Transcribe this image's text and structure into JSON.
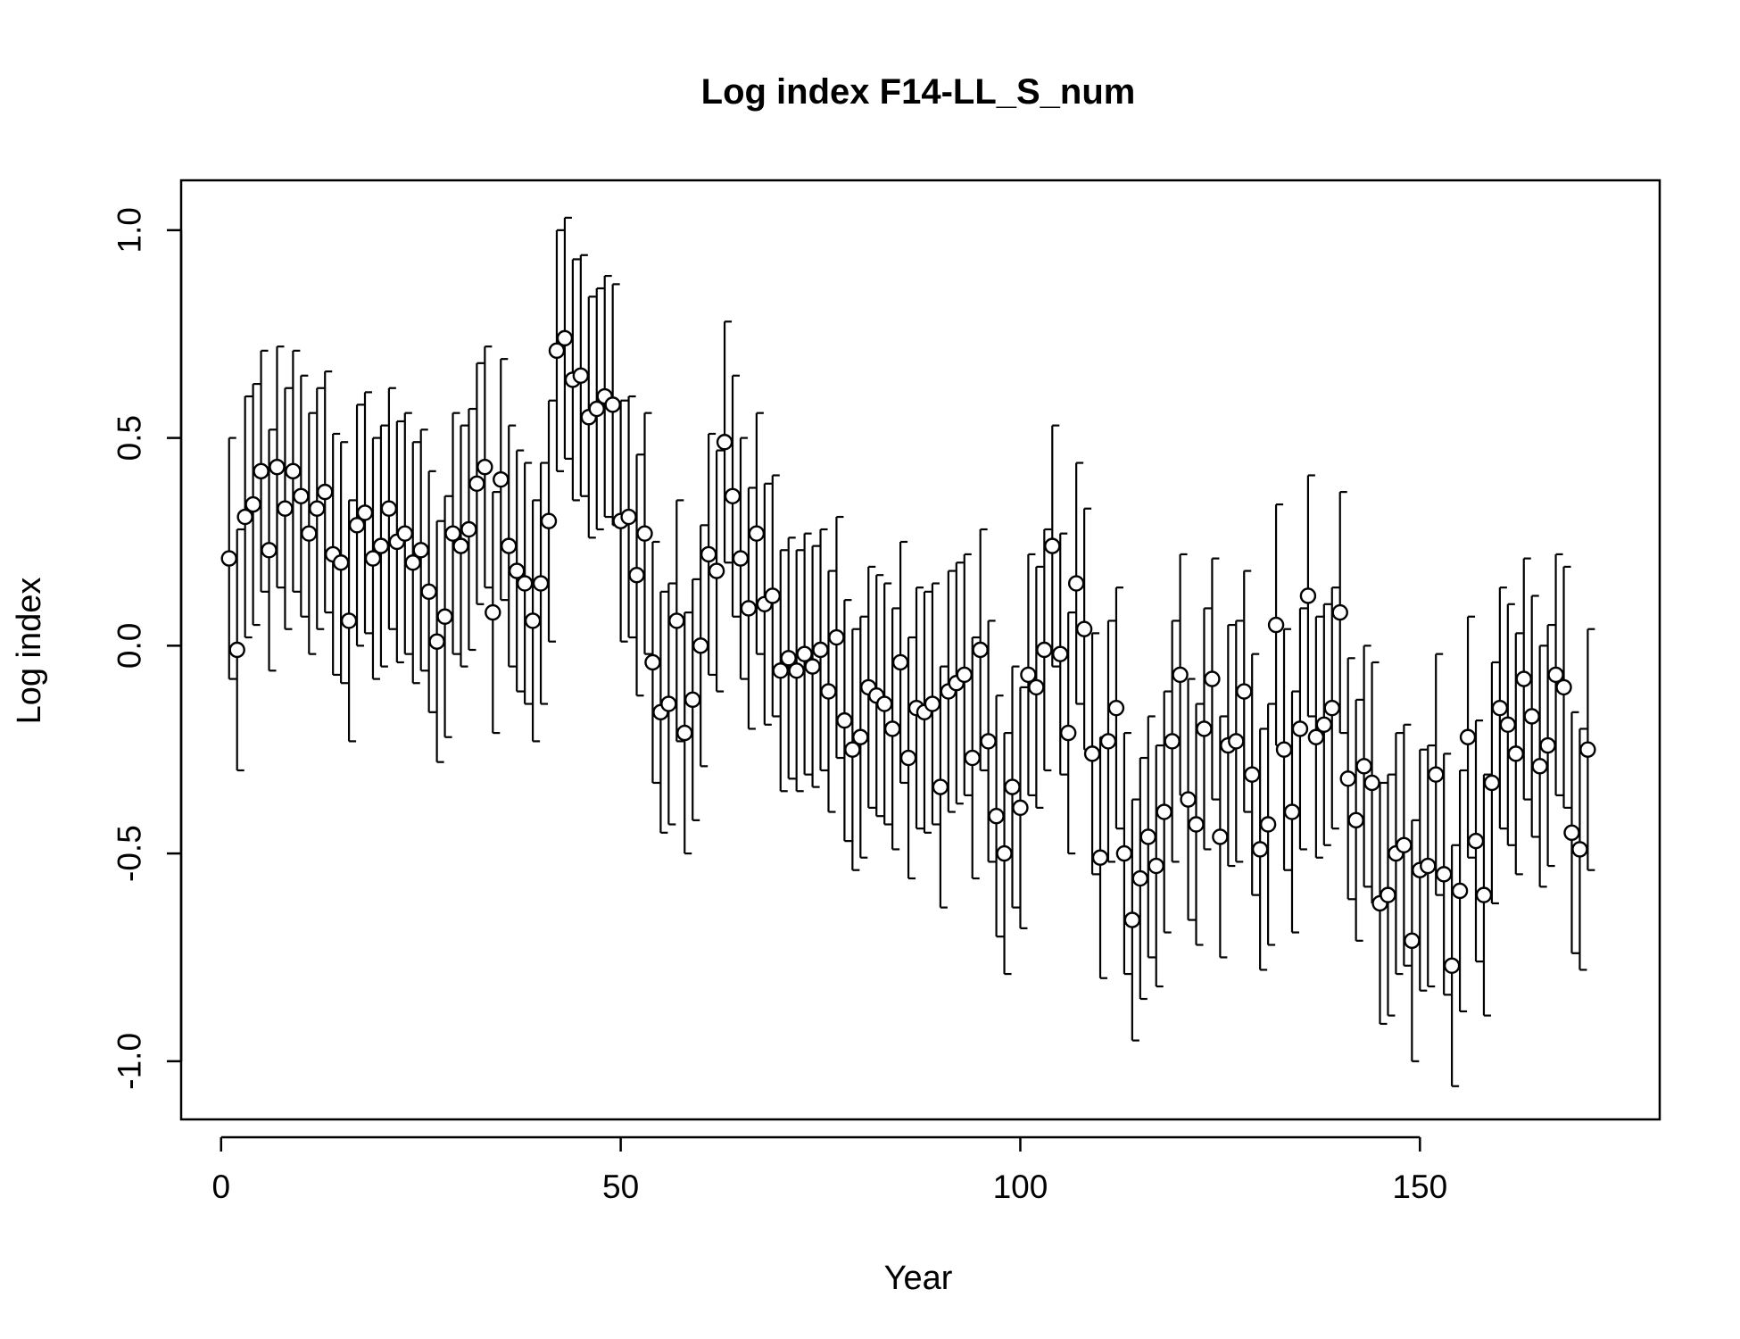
{
  "chart_data": {
    "type": "scatter",
    "title": "Log index F14-LL_S_num",
    "xlabel": "Year",
    "ylabel": "Log index",
    "xlim": [
      -5,
      180
    ],
    "ylim": [
      -1.14,
      1.12
    ],
    "x_ticks": [
      0,
      50,
      100,
      150
    ],
    "y_ticks": [
      -1.0,
      -0.5,
      0.0,
      0.5,
      1.0
    ],
    "x_tick_labels": [
      "0",
      "50",
      "100",
      "150"
    ],
    "y_tick_labels": [
      "-1.0",
      "-0.5",
      "0.0",
      "0.5",
      "1.0"
    ],
    "error_bar_halfwidth": 0.29,
    "grid": false,
    "legend": "none",
    "colors": {
      "point_fill": "#ffffff",
      "point_stroke": "#000000",
      "error_bar": "#000000",
      "frame": "#000000"
    },
    "series": [
      {
        "x": [
          1,
          2,
          3,
          4,
          5,
          6,
          7,
          8,
          9,
          10,
          11,
          12,
          13,
          14,
          15,
          16,
          17,
          18,
          19,
          20,
          21,
          22,
          23,
          24,
          25,
          26,
          27,
          28,
          29,
          30,
          31,
          32,
          33,
          34,
          35,
          36,
          37,
          38,
          39,
          40,
          41,
          42,
          43,
          44,
          45,
          46,
          47,
          48,
          49,
          50,
          51,
          52,
          53,
          54,
          55,
          56,
          57,
          58,
          59,
          60,
          61,
          62,
          63,
          64,
          65,
          66,
          67,
          68,
          69,
          70,
          71,
          72,
          73,
          74,
          75,
          76,
          77,
          78,
          79,
          80,
          81,
          82,
          83,
          84,
          85,
          86,
          87,
          88,
          89,
          90,
          91,
          92,
          93,
          94,
          95,
          96,
          97,
          98,
          99,
          100,
          101,
          102,
          103,
          104,
          105,
          106,
          107,
          108,
          109,
          110,
          111,
          112,
          113,
          114,
          115,
          116,
          117,
          118,
          119,
          120,
          121,
          122,
          123,
          124,
          125,
          126,
          127,
          128,
          129,
          130,
          131,
          132,
          133,
          134,
          135,
          136,
          137,
          138,
          139,
          140,
          141,
          142,
          143,
          144,
          145,
          146,
          147,
          148,
          149,
          150,
          151,
          152,
          153,
          154,
          155,
          156,
          157,
          158,
          159,
          160,
          161,
          162,
          163,
          164,
          165,
          166,
          167,
          168,
          169,
          170,
          171
        ],
        "y": [
          0.21,
          -0.01,
          0.31,
          0.34,
          0.42,
          0.23,
          0.43,
          0.33,
          0.42,
          0.36,
          0.27,
          0.33,
          0.37,
          0.22,
          0.2,
          0.06,
          0.29,
          0.32,
          0.21,
          0.24,
          0.33,
          0.25,
          0.27,
          0.2,
          0.23,
          0.13,
          0.01,
          0.07,
          0.27,
          0.24,
          0.28,
          0.39,
          0.43,
          0.08,
          0.4,
          0.24,
          0.18,
          0.15,
          0.06,
          0.15,
          0.3,
          0.71,
          0.74,
          0.64,
          0.65,
          0.55,
          0.57,
          0.6,
          0.58,
          0.3,
          0.31,
          0.17,
          0.27,
          -0.04,
          -0.16,
          -0.14,
          0.06,
          -0.21,
          -0.13,
          0.0,
          0.22,
          0.18,
          0.49,
          0.36,
          0.21,
          0.09,
          0.27,
          0.1,
          0.12,
          -0.06,
          -0.03,
          -0.06,
          -0.02,
          -0.05,
          -0.01,
          -0.11,
          0.02,
          -0.18,
          -0.25,
          -0.22,
          -0.1,
          -0.12,
          -0.14,
          -0.2,
          -0.04,
          -0.27,
          -0.15,
          -0.16,
          -0.14,
          -0.34,
          -0.11,
          -0.09,
          -0.07,
          -0.27,
          -0.01,
          -0.23,
          -0.41,
          -0.5,
          -0.34,
          -0.39,
          -0.07,
          -0.1,
          -0.01,
          0.24,
          -0.02,
          -0.21,
          0.15,
          0.04,
          -0.26,
          -0.51,
          -0.23,
          -0.15,
          -0.5,
          -0.66,
          -0.56,
          -0.46,
          -0.53,
          -0.4,
          -0.23,
          -0.07,
          -0.37,
          -0.43,
          -0.2,
          -0.08,
          -0.46,
          -0.24,
          -0.23,
          -0.11,
          -0.31,
          -0.49,
          -0.43,
          0.05,
          -0.25,
          -0.4,
          -0.2,
          0.12,
          -0.22,
          -0.19,
          -0.15,
          0.08,
          -0.32,
          -0.42,
          -0.29,
          -0.33,
          -0.62,
          -0.6,
          -0.5,
          -0.48,
          -0.71,
          -0.54,
          -0.53,
          -0.31,
          -0.55,
          -0.77,
          -0.59,
          -0.22,
          -0.47,
          -0.6,
          -0.33,
          -0.15,
          -0.19,
          -0.26,
          -0.08,
          -0.17,
          -0.29,
          -0.24,
          -0.07,
          -0.1,
          -0.45,
          -0.49,
          -0.25
        ]
      }
    ]
  }
}
